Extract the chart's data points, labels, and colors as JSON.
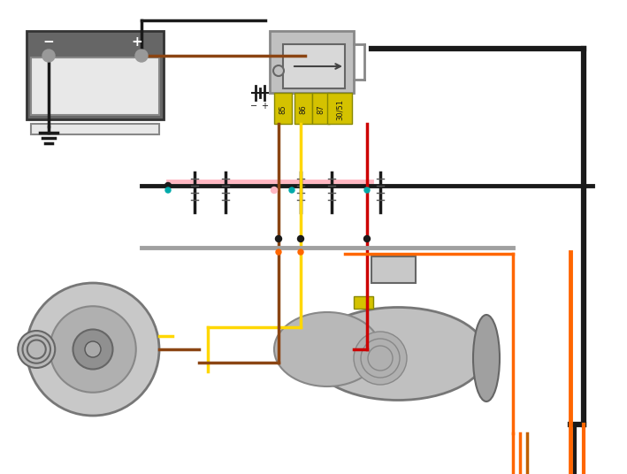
{
  "bg_color": "#ffffff",
  "wire_colors": {
    "black": "#1a1a1a",
    "brown": "#8B4513",
    "yellow": "#FFD700",
    "red": "#CC0000",
    "gray": "#A0A0A0",
    "orange": "#FF8C00",
    "pink": "#FFB6C1",
    "dark_orange": "#FF6600"
  },
  "relay_labels": [
    "85",
    "86",
    "87",
    "30/51"
  ],
  "relay_label_color": "#c8b400"
}
